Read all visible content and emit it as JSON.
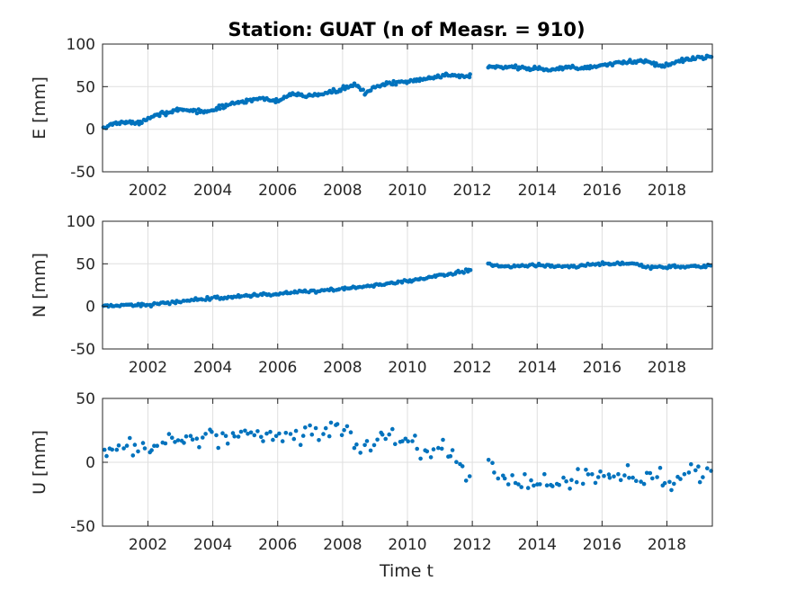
{
  "title": "Station: GUAT (n of Measr. = 910)",
  "xlabel": "Time t",
  "colors": {
    "marker": "#0072BD",
    "grid": "#dfdfdf",
    "axis": "#262626"
  },
  "chart_data": [
    {
      "type": "scatter",
      "name": "east",
      "ylabel": "E [mm]",
      "xlim": [
        2000.6,
        2019.4
      ],
      "ylim": [
        -50,
        100
      ],
      "xticks": [
        2002,
        2004,
        2006,
        2008,
        2010,
        2012,
        2014,
        2016,
        2018
      ],
      "xtick_labels": [
        "2002",
        "2004",
        "2006",
        "2008",
        "2010",
        "2012",
        "2014",
        "2016",
        "2018"
      ],
      "yticks": [
        100,
        50,
        0,
        -50
      ],
      "ytick_labels": [
        "100",
        "50",
        "0",
        "-50"
      ],
      "grid": true,
      "gap": [
        2011.95,
        2012.45
      ],
      "trend": [
        [
          2000.6,
          0
        ],
        [
          2001.0,
          8
        ],
        [
          2001.7,
          7
        ],
        [
          2002.2,
          17
        ],
        [
          2003.0,
          22
        ],
        [
          2003.9,
          21
        ],
        [
          2004.6,
          30
        ],
        [
          2005.3,
          36
        ],
        [
          2006.0,
          33
        ],
        [
          2006.4,
          40
        ],
        [
          2007.2,
          40
        ],
        [
          2007.9,
          46
        ],
        [
          2008.4,
          53
        ],
        [
          2008.7,
          43
        ],
        [
          2009.2,
          52
        ],
        [
          2010.0,
          56
        ],
        [
          2010.6,
          60
        ],
        [
          2011.2,
          64
        ],
        [
          2011.9,
          63
        ],
        [
          2012.5,
          73
        ],
        [
          2013.5,
          72
        ],
        [
          2014.3,
          70
        ],
        [
          2015.0,
          73
        ],
        [
          2015.7,
          72
        ],
        [
          2016.5,
          78
        ],
        [
          2017.3,
          80
        ],
        [
          2017.8,
          74
        ],
        [
          2018.5,
          81
        ],
        [
          2019.4,
          86
        ]
      ],
      "noise": 1.6,
      "n_points": 390
    },
    {
      "type": "scatter",
      "name": "north",
      "ylabel": "N [mm]",
      "xlim": [
        2000.6,
        2019.4
      ],
      "ylim": [
        -50,
        100
      ],
      "xticks": [
        2002,
        2004,
        2006,
        2008,
        2010,
        2012,
        2014,
        2016,
        2018
      ],
      "xtick_labels": [
        "2002",
        "2004",
        "2006",
        "2008",
        "2010",
        "2012",
        "2014",
        "2016",
        "2018"
      ],
      "yticks": [
        100,
        50,
        0,
        -50
      ],
      "ytick_labels": [
        "100",
        "50",
        "0",
        "-50"
      ],
      "grid": true,
      "gap": [
        2011.95,
        2012.45
      ],
      "trend": [
        [
          2000.6,
          0
        ],
        [
          2002.0,
          2
        ],
        [
          2004.0,
          10
        ],
        [
          2006.0,
          15
        ],
        [
          2008.0,
          20
        ],
        [
          2010.0,
          30
        ],
        [
          2011.9,
          42
        ],
        [
          2012.5,
          50
        ],
        [
          2013.0,
          47
        ],
        [
          2014.0,
          48
        ],
        [
          2015.0,
          46
        ],
        [
          2016.0,
          50
        ],
        [
          2017.0,
          50
        ],
        [
          2017.5,
          46
        ],
        [
          2018.5,
          46
        ],
        [
          2019.4,
          48
        ]
      ],
      "noise": 1.3,
      "n_points": 330
    },
    {
      "type": "scatter",
      "name": "up",
      "ylabel": "U [mm]",
      "xlim": [
        2000.6,
        2019.4
      ],
      "ylim": [
        -50,
        50
      ],
      "xticks": [
        2002,
        2004,
        2006,
        2008,
        2010,
        2012,
        2014,
        2016,
        2018
      ],
      "xtick_labels": [
        "2002",
        "2004",
        "2006",
        "2008",
        "2010",
        "2012",
        "2014",
        "2016",
        "2018"
      ],
      "yticks": [
        50,
        0,
        -50
      ],
      "ytick_labels": [
        "50",
        "0",
        "-50"
      ],
      "grid": true,
      "gap": [
        2011.95,
        2012.45
      ],
      "trend": [
        [
          2000.6,
          2
        ],
        [
          2001.0,
          10
        ],
        [
          2002.0,
          12
        ],
        [
          2003.0,
          20
        ],
        [
          2004.0,
          18
        ],
        [
          2005.0,
          22
        ],
        [
          2006.0,
          20
        ],
        [
          2007.0,
          22
        ],
        [
          2008.0,
          25
        ],
        [
          2008.5,
          12
        ],
        [
          2009.3,
          22
        ],
        [
          2010.0,
          18
        ],
        [
          2010.6,
          8
        ],
        [
          2011.2,
          12
        ],
        [
          2011.9,
          -12
        ],
        [
          2012.5,
          -5
        ],
        [
          2013.0,
          -10
        ],
        [
          2014.0,
          -18
        ],
        [
          2015.0,
          -13
        ],
        [
          2016.0,
          -12
        ],
        [
          2017.0,
          -10
        ],
        [
          2018.0,
          -15
        ],
        [
          2019.4,
          -5
        ]
      ],
      "noise": 5.0,
      "n_points": 190
    }
  ]
}
